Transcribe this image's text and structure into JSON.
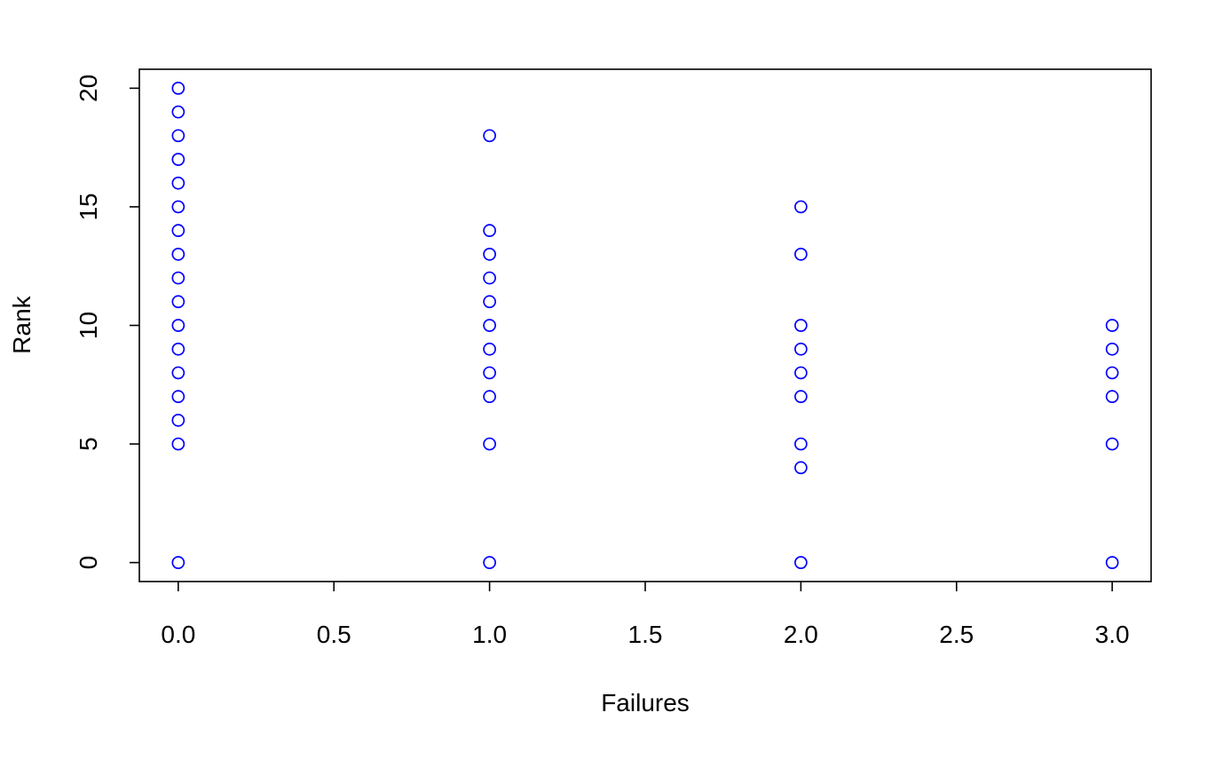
{
  "chart_data": {
    "type": "scatter",
    "title": "",
    "xlabel": "Failures",
    "ylabel": "Rank",
    "xlim": [
      -0.125,
      3.125
    ],
    "ylim": [
      -0.8,
      20.8
    ],
    "x_ticks": [
      0.0,
      0.5,
      1.0,
      1.5,
      2.0,
      2.5,
      3.0
    ],
    "x_tick_labels": [
      "0.0",
      "0.5",
      "1.0",
      "1.5",
      "2.0",
      "2.5",
      "3.0"
    ],
    "y_ticks": [
      0,
      5,
      10,
      15,
      20
    ],
    "y_tick_labels": [
      "0",
      "5",
      "10",
      "15",
      "20"
    ],
    "grid": false,
    "legend": "none",
    "marker": "open-circle",
    "marker_color": "#0000ff",
    "points": [
      {
        "x": 0,
        "y": 20
      },
      {
        "x": 0,
        "y": 19
      },
      {
        "x": 0,
        "y": 18
      },
      {
        "x": 0,
        "y": 17
      },
      {
        "x": 0,
        "y": 16
      },
      {
        "x": 0,
        "y": 15
      },
      {
        "x": 0,
        "y": 14
      },
      {
        "x": 0,
        "y": 13
      },
      {
        "x": 0,
        "y": 12
      },
      {
        "x": 0,
        "y": 11
      },
      {
        "x": 0,
        "y": 10
      },
      {
        "x": 0,
        "y": 9
      },
      {
        "x": 0,
        "y": 8
      },
      {
        "x": 0,
        "y": 7
      },
      {
        "x": 0,
        "y": 6
      },
      {
        "x": 0,
        "y": 5
      },
      {
        "x": 0,
        "y": 0
      },
      {
        "x": 1,
        "y": 18
      },
      {
        "x": 1,
        "y": 14
      },
      {
        "x": 1,
        "y": 13
      },
      {
        "x": 1,
        "y": 12
      },
      {
        "x": 1,
        "y": 11
      },
      {
        "x": 1,
        "y": 10
      },
      {
        "x": 1,
        "y": 9
      },
      {
        "x": 1,
        "y": 8
      },
      {
        "x": 1,
        "y": 7
      },
      {
        "x": 1,
        "y": 5
      },
      {
        "x": 1,
        "y": 0
      },
      {
        "x": 2,
        "y": 15
      },
      {
        "x": 2,
        "y": 13
      },
      {
        "x": 2,
        "y": 10
      },
      {
        "x": 2,
        "y": 9
      },
      {
        "x": 2,
        "y": 8
      },
      {
        "x": 2,
        "y": 7
      },
      {
        "x": 2,
        "y": 5
      },
      {
        "x": 2,
        "y": 4
      },
      {
        "x": 2,
        "y": 0
      },
      {
        "x": 3,
        "y": 10
      },
      {
        "x": 3,
        "y": 9
      },
      {
        "x": 3,
        "y": 8
      },
      {
        "x": 3,
        "y": 7
      },
      {
        "x": 3,
        "y": 5
      },
      {
        "x": 3,
        "y": 0
      }
    ]
  }
}
